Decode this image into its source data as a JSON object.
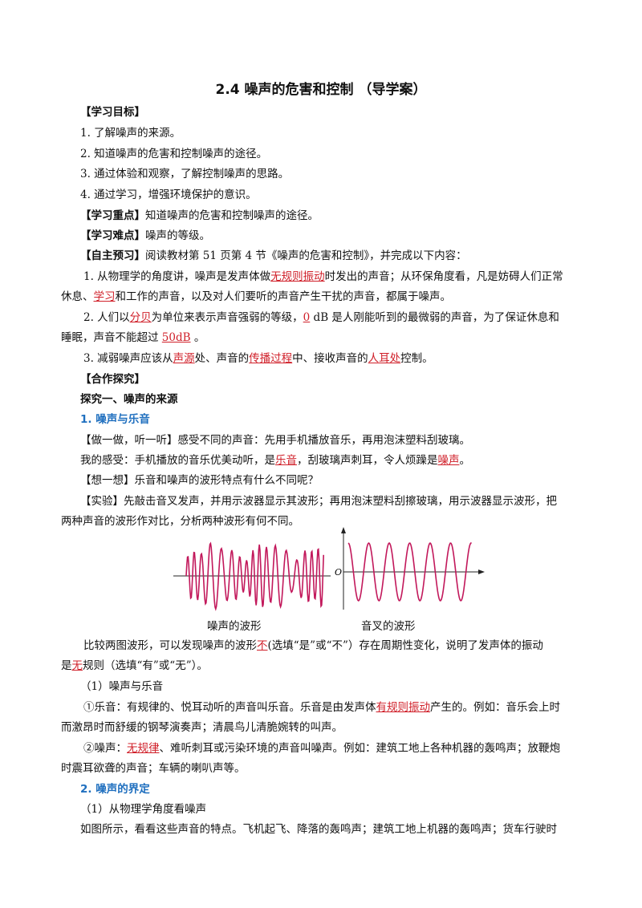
{
  "title": "2.4  噪声的危害和控制  （导学案）",
  "objectives": {
    "heading": "【学习目标】",
    "items": [
      "1. 了解噪声的来源。",
      "2. 知道噪声的危害和控制噪声的途径。",
      "3. 通过体验和观察，了解控制噪声的思路。",
      "4. 通过学习，增强环境保护的意识。"
    ]
  },
  "key_point": {
    "label": "【学习重点】",
    "text": "知道噪声的危害和控制噪声的途径。"
  },
  "difficulty": {
    "label": "【学习难点】",
    "text": "噪声的等级。"
  },
  "preview": {
    "label": "【自主预习】",
    "text": "阅读教材第 51 页第 4 节《噪声的危害和控制》，并完成以下内容：",
    "q1": {
      "a": "1. 从物理学的角度讲，噪声是发声体做",
      "ans1": "无规则振动",
      "b": "时发出的声音；从环保角度看，凡是妨碍人们正常",
      "c": "休息、",
      "ans2": "学习",
      "d": "和工作的声音，以及对人们要听的声音产生干扰的声音，都属于噪声。"
    },
    "q2": {
      "a": "2. 人们以",
      "ans1": "分贝",
      "b": "为单位来表示声音强弱的等级，",
      "ans2": "0",
      "c": " dB 是人刚能听到的最微弱的声音，为了保证休息和",
      "d": "睡眠，声音不能超过 ",
      "ans3": "50dB",
      "e": " 。"
    },
    "q3": {
      "a": "3. 减弱噪声应该从",
      "ans1": "声源",
      "b": "处、声音的",
      "ans2": "传播过程",
      "c": "中、接收声音的",
      "ans3": "人耳处",
      "d": "控制。"
    }
  },
  "coop": {
    "heading": "【合作探究】",
    "section1": "探究一、噪声的来源",
    "sub1": "1. 噪声与乐音"
  },
  "doit": {
    "label": "【做一做，听一听】",
    "text": "感受不同的声音：先用手机播放音乐，再用泡沫塑料刮玻璃。"
  },
  "feel": {
    "a": "我的感受：手机播放的音乐优美动听，是",
    "ans1": "乐音",
    "b": "，刮玻璃声刺耳，令人烦躁是",
    "ans2": "噪声",
    "c": "。"
  },
  "think": {
    "label": "【想一想】",
    "text": "乐音和噪声的波形特点有什么不同呢？"
  },
  "experiment": {
    "label": "【实验】",
    "text1": "先敲击音叉发声，并用示波器显示其波形；再用泡沫塑料刮擦玻璃，用示波器显示波形，把",
    "text2": "两种声音的波形作对比，分析两种波形有何不同。"
  },
  "figure": {
    "noise_caption": "噪声的波形",
    "fork_caption": "音叉的波形",
    "origin_label": "O",
    "wave_color": "#c2185b"
  },
  "compare": {
    "a": "比较两图波形，可以发现噪声的波形",
    "ans1": "不",
    "b": "(选填“是”或“不”）存在周期性变化，说明了发声体的振动",
    "c": "是",
    "ans2": "无",
    "d": "规则（选填“有”或“无”）。"
  },
  "sub_noise_music": "（1）噪声与乐音",
  "music_def": {
    "a": "①乐音：有规律的、悦耳动听的声音叫乐音。乐音是由发声体",
    "ans1": "有规则振动",
    "b": "产生的。例如：音乐会上时",
    "c": "而激昂时而舒缓的钢琴演奏声；清晨鸟儿清脆婉转的叫声。"
  },
  "noise_def": {
    "a": "②噪声：",
    "ans1": "无规律",
    "b": "、难听刺耳或污染环境的声音叫噪声。例如：建筑工地上各种机器的轰鸣声；放鞭炮",
    "c": "时震耳欲聋的声音；车辆的喇叭声等。"
  },
  "sub2": "2. 噪声的界定",
  "physics_view": "（1）从物理学角度看噪声",
  "last_line": "如图所示，看看这些声音的特点。飞机起飞、降落的轰鸣声；建筑工地上机器的轰鸣声；货车行驶时"
}
